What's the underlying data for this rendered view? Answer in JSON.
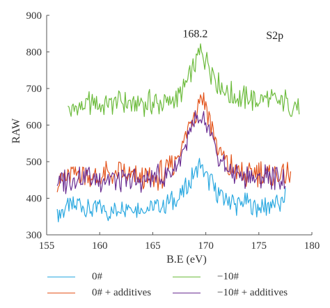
{
  "chart_data": {
    "type": "line",
    "title": "",
    "xlabel": "B.E (eV)",
    "ylabel": "RAW",
    "xlim": [
      155,
      180
    ],
    "ylim": [
      300,
      900
    ],
    "xticks": [
      155,
      160,
      165,
      170,
      175,
      180
    ],
    "yticks": [
      300,
      400,
      500,
      600,
      700,
      800,
      900
    ],
    "grid": false,
    "legend_position": "bottom",
    "annotations": [
      {
        "text": "168.2",
        "x": 169.0,
        "y": 840
      },
      {
        "text": "S2p",
        "x": 176.5,
        "y": 835
      }
    ],
    "series": [
      {
        "name": "0#",
        "color": "#29a8e0",
        "x": [
          156.0,
          157.0,
          158.0,
          159.0,
          160.0,
          161.0,
          162.0,
          163.0,
          164.0,
          165.0,
          166.0,
          167.0,
          168.0,
          168.5,
          169.0,
          169.5,
          170.0,
          170.5,
          171.0,
          172.0,
          173.0,
          174.0,
          175.0,
          176.0,
          177.0,
          177.5
        ],
        "y": [
          355,
          375,
          385,
          370,
          375,
          365,
          380,
          375,
          370,
          375,
          380,
          395,
          420,
          445,
          470,
          490,
          460,
          440,
          420,
          395,
          385,
          380,
          375,
          380,
          385,
          395
        ]
      },
      {
        "name": "−10#",
        "color": "#6cbb3c",
        "x": [
          157.0,
          158.0,
          159.0,
          160.0,
          161.0,
          162.0,
          163.0,
          164.0,
          165.0,
          166.0,
          167.0,
          168.0,
          168.5,
          169.0,
          169.5,
          170.0,
          170.5,
          171.0,
          172.0,
          173.0,
          174.0,
          175.0,
          176.0,
          177.0,
          178.0,
          178.8
        ],
        "y": [
          645,
          650,
          660,
          655,
          660,
          665,
          655,
          660,
          665,
          660,
          670,
          700,
          740,
          770,
          800,
          780,
          750,
          720,
          690,
          675,
          670,
          665,
          670,
          665,
          660,
          650
        ]
      },
      {
        "name": "0# + additives",
        "color": "#e3541c",
        "x": [
          156.0,
          157.0,
          158.0,
          159.0,
          160.0,
          161.0,
          162.0,
          163.0,
          164.0,
          165.0,
          166.0,
          167.0,
          168.0,
          168.5,
          169.0,
          169.5,
          170.0,
          170.5,
          171.0,
          172.0,
          173.0,
          174.0,
          175.0,
          176.0,
          177.0,
          178.0
        ],
        "y": [
          445,
          460,
          470,
          465,
          455,
          460,
          465,
          455,
          450,
          455,
          465,
          490,
          560,
          600,
          640,
          680,
          650,
          600,
          540,
          490,
          470,
          465,
          470,
          460,
          465,
          460
        ]
      },
      {
        "name": "−10# + additives",
        "color": "#6a2d91",
        "x": [
          156.0,
          157.0,
          158.0,
          159.0,
          160.0,
          161.0,
          162.0,
          163.0,
          164.0,
          165.0,
          166.0,
          167.0,
          168.0,
          168.5,
          169.0,
          169.5,
          170.0,
          170.5,
          171.0,
          172.0,
          173.0,
          174.0,
          175.0,
          176.0,
          177.0,
          177.5
        ],
        "y": [
          440,
          450,
          460,
          455,
          450,
          455,
          450,
          445,
          450,
          455,
          460,
          480,
          540,
          575,
          605,
          610,
          595,
          560,
          520,
          480,
          465,
          460,
          455,
          460,
          455,
          450
        ]
      }
    ]
  },
  "legend": [
    {
      "label": "0#",
      "color": "#29a8e0"
    },
    {
      "label": "−10#",
      "color": "#6cbb3c"
    },
    {
      "label": "0# + additives",
      "color": "#e3541c"
    },
    {
      "label": "−10# + additives",
      "color": "#6a2d91"
    }
  ]
}
